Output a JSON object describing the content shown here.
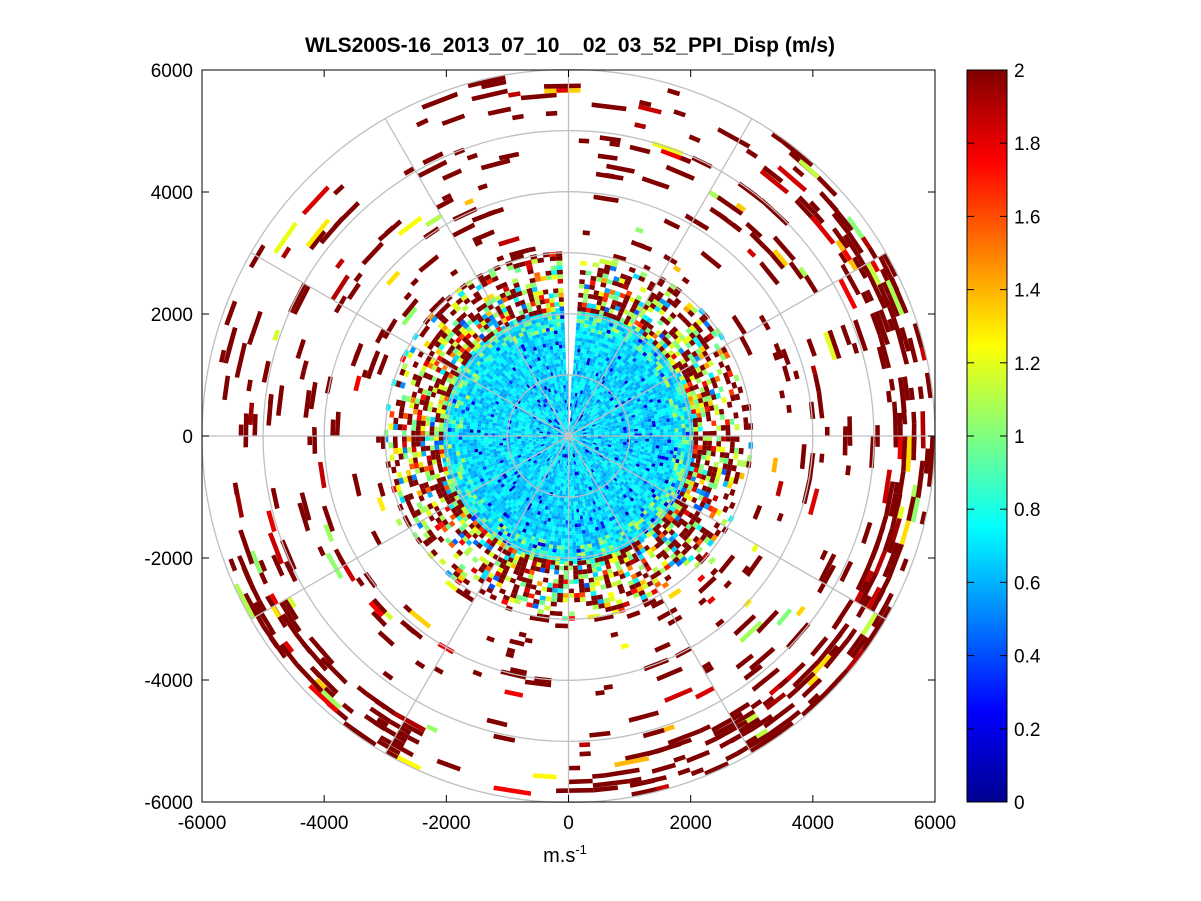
{
  "chart_data": {
    "type": "heatmap",
    "subtype": "polar-ppi",
    "title": "WLS200S-16_2013_07_10__02_03_52_PPI_Disp (m/s)",
    "xlabel": "m.s",
    "xlabel_superscript": "-1",
    "ylabel": "",
    "xlim": [
      -6000,
      6000
    ],
    "ylim": [
      -6000,
      6000
    ],
    "xticks": [
      -6000,
      -4000,
      -2000,
      0,
      2000,
      4000,
      6000
    ],
    "yticks": [
      6000,
      4000,
      2000,
      0,
      -2000,
      -4000,
      -6000
    ],
    "xtick_labels": [
      "-6000",
      "-4000",
      "-2000",
      "0",
      "2000",
      "4000",
      "6000"
    ],
    "ytick_labels": [
      "6000",
      "4000",
      "2000",
      "0",
      "-2000",
      "-4000",
      "-6000"
    ],
    "range_rings_m": [
      1000,
      2000,
      3000,
      4000,
      5000,
      6000
    ],
    "spokes_deg": [
      0,
      30,
      60,
      90,
      120,
      150,
      180,
      210,
      240,
      270,
      300,
      330
    ],
    "gap_azimuth_deg": [
      -3,
      3
    ],
    "gap_range_m": [
      0,
      3300
    ],
    "colorbar": {
      "colormap": "jet",
      "range": [
        0,
        2
      ],
      "ticks": [
        0,
        0.2,
        0.4,
        0.6,
        0.8,
        1,
        1.2,
        1.4,
        1.6,
        1.8,
        2
      ],
      "tick_labels": [
        "0",
        "0.2",
        "0.4",
        "0.6",
        "0.8",
        "1",
        "1.2",
        "1.4",
        "1.6",
        "1.8",
        "2"
      ]
    },
    "field_description": [
      {
        "range_m": [
          0,
          2000
        ],
        "typical_value": 0.65,
        "note": "dense low-dispersion core"
      },
      {
        "range_m": [
          2000,
          2800
        ],
        "typical_value": 1.1,
        "note": "mixed ring"
      },
      {
        "range_m": [
          2500,
          6000
        ],
        "typical_value": 2.0,
        "note": "sparse saturated cells"
      }
    ]
  }
}
